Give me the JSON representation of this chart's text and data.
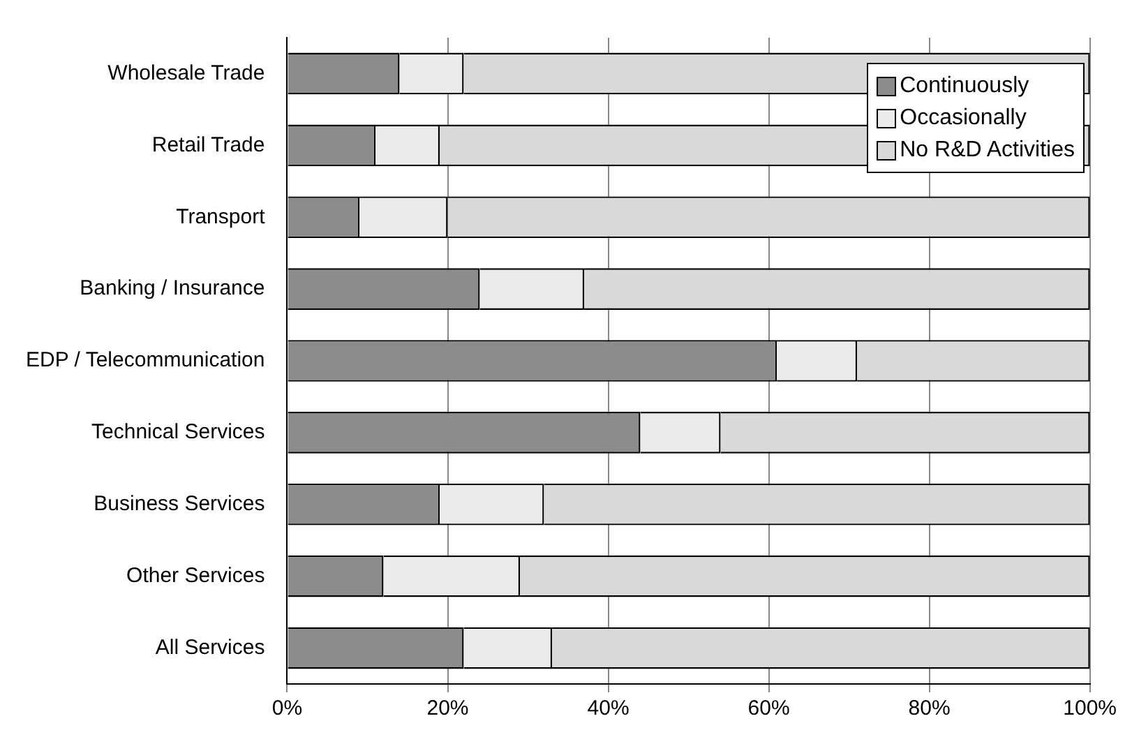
{
  "chart_data": {
    "type": "bar",
    "orientation": "horizontal",
    "stacked": true,
    "categories": [
      "Wholesale Trade",
      "Retail Trade",
      "Transport",
      "Banking / Insurance",
      "EDP / Telecommunication",
      "Technical Services",
      "Business Services",
      "Other Services",
      "All Services"
    ],
    "series": [
      {
        "name": "Continuously",
        "color": "#8c8c8c",
        "values": [
          14,
          11,
          9,
          24,
          61,
          44,
          19,
          12,
          22
        ]
      },
      {
        "name": "Occasionally",
        "color": "#ebebeb",
        "values": [
          8,
          8,
          11,
          13,
          10,
          10,
          13,
          17,
          11
        ]
      },
      {
        "name": "No R&D Activities",
        "color": "#d9d9d9",
        "values": [
          78,
          81,
          80,
          63,
          29,
          46,
          68,
          71,
          67
        ]
      }
    ],
    "xlim": [
      0,
      100
    ],
    "xticks": [
      {
        "value": 0,
        "label": "0%"
      },
      {
        "value": 20,
        "label": "20%"
      },
      {
        "value": 40,
        "label": "40%"
      },
      {
        "value": 60,
        "label": "60%"
      },
      {
        "value": 80,
        "label": "80%"
      },
      {
        "value": 100,
        "label": "100%"
      }
    ],
    "grid": "x",
    "legend": "top right"
  }
}
